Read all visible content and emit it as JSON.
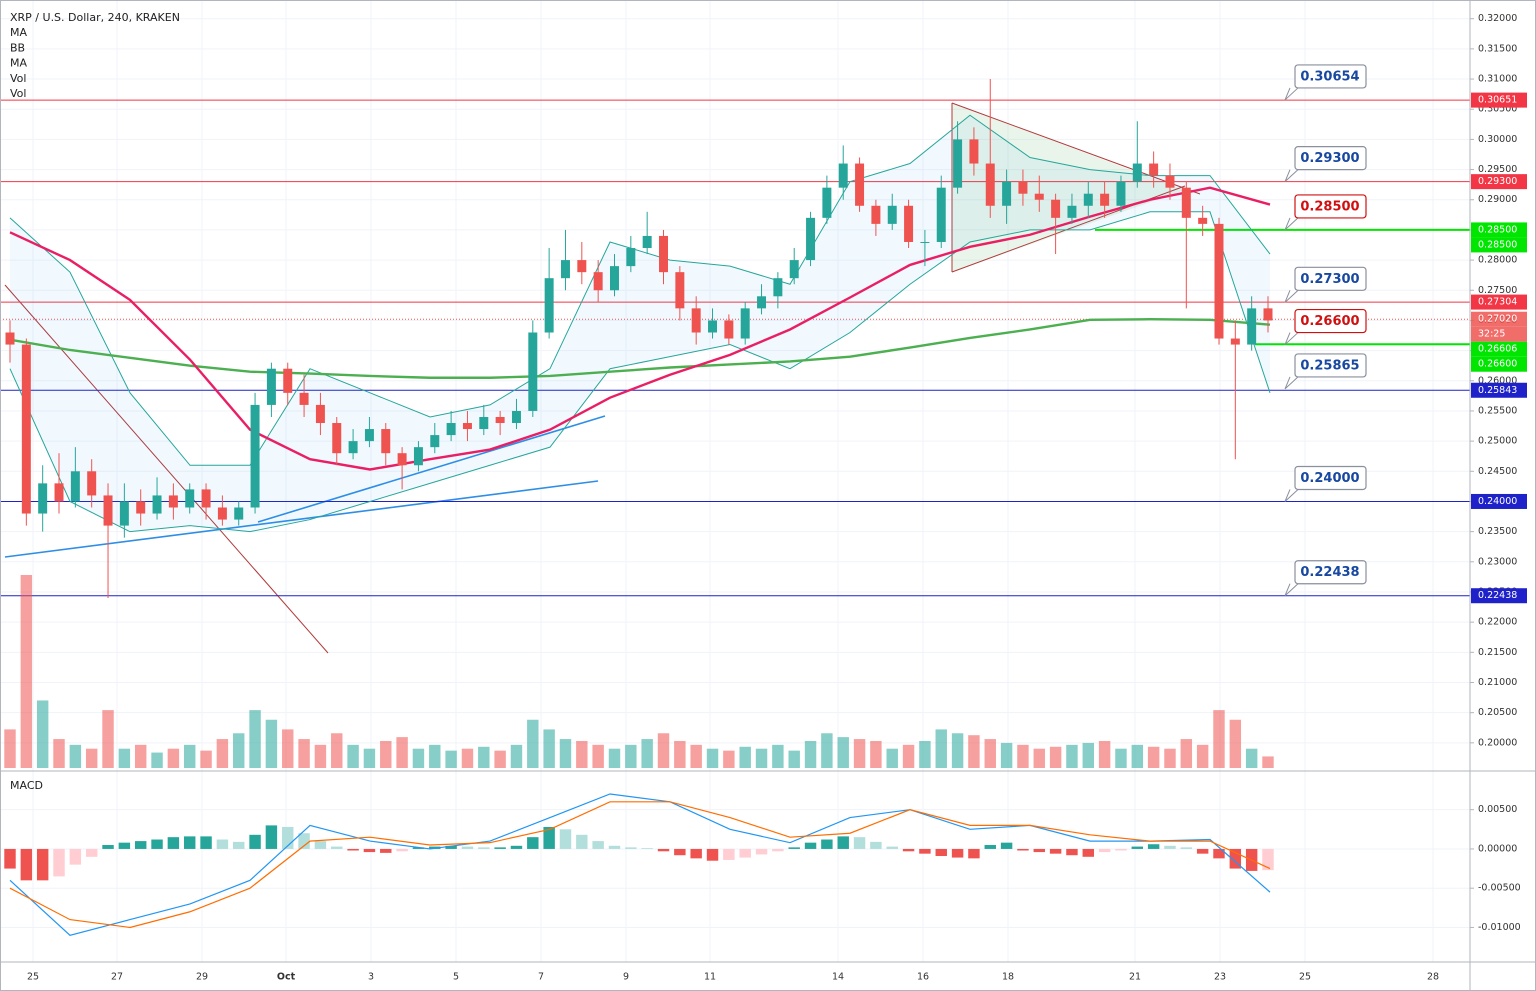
{
  "chart_data": {
    "type": "candlestick",
    "title": "XRP / U.S. Dollar, 240, KRAKEN",
    "indicators": [
      "MA",
      "BB",
      "MA",
      "Vol",
      "Vol"
    ],
    "x_labels": [
      "25",
      "27",
      "29",
      "Oct",
      "3",
      "5",
      "7",
      "9",
      "11",
      "14",
      "16",
      "18",
      "21",
      "23",
      "25",
      "28"
    ],
    "up_color": "#26a69a",
    "down_color": "#ef5350",
    "ylim": [
      0.1955,
      0.3231
    ],
    "yticks": [
      {
        "value": 0.32,
        "label": "0.32000"
      },
      {
        "value": 0.315,
        "label": "0.31500"
      },
      {
        "value": 0.31,
        "label": "0.31000"
      },
      {
        "value": 0.305,
        "label": "0.30500"
      },
      {
        "value": 0.3,
        "label": "0.30000"
      },
      {
        "value": 0.295,
        "label": "0.29500"
      },
      {
        "value": 0.29,
        "label": "0.29000"
      },
      {
        "value": 0.285,
        "label": "0.28500"
      },
      {
        "value": 0.28,
        "label": "0.28000"
      },
      {
        "value": 0.275,
        "label": "0.27500"
      },
      {
        "value": 0.27,
        "label": "0.27000"
      },
      {
        "value": 0.265,
        "label": "0.26500"
      },
      {
        "value": 0.26,
        "label": "0.26000"
      },
      {
        "value": 0.255,
        "label": "0.25500"
      },
      {
        "value": 0.25,
        "label": "0.25000"
      },
      {
        "value": 0.245,
        "label": "0.24500"
      },
      {
        "value": 0.24,
        "label": "0.24000"
      },
      {
        "value": 0.235,
        "label": "0.23500"
      },
      {
        "value": 0.23,
        "label": "0.23000"
      },
      {
        "value": 0.225,
        "label": "0.22500"
      },
      {
        "value": 0.22,
        "label": "0.22000"
      },
      {
        "value": 0.215,
        "label": "0.21500"
      },
      {
        "value": 0.21,
        "label": "0.21000"
      },
      {
        "value": 0.205,
        "label": "0.20500"
      },
      {
        "value": 0.2,
        "label": "0.20000"
      }
    ],
    "candles": [
      [
        0.268,
        0.27,
        0.263,
        0.266
      ],
      [
        0.266,
        0.267,
        0.236,
        0.238
      ],
      [
        0.238,
        0.246,
        0.235,
        0.243
      ],
      [
        0.243,
        0.248,
        0.238,
        0.24
      ],
      [
        0.24,
        0.249,
        0.239,
        0.245
      ],
      [
        0.245,
        0.247,
        0.239,
        0.241
      ],
      [
        0.241,
        0.243,
        0.224,
        0.236
      ],
      [
        0.236,
        0.243,
        0.234,
        0.24
      ],
      [
        0.24,
        0.242,
        0.236,
        0.238
      ],
      [
        0.238,
        0.244,
        0.237,
        0.241
      ],
      [
        0.241,
        0.243,
        0.237,
        0.239
      ],
      [
        0.239,
        0.243,
        0.238,
        0.242
      ],
      [
        0.242,
        0.243,
        0.237,
        0.239
      ],
      [
        0.239,
        0.241,
        0.236,
        0.237
      ],
      [
        0.237,
        0.24,
        0.236,
        0.239
      ],
      [
        0.239,
        0.258,
        0.238,
        0.256
      ],
      [
        0.256,
        0.263,
        0.254,
        0.262
      ],
      [
        0.262,
        0.263,
        0.256,
        0.258
      ],
      [
        0.258,
        0.261,
        0.254,
        0.256
      ],
      [
        0.256,
        0.258,
        0.251,
        0.253
      ],
      [
        0.253,
        0.254,
        0.246,
        0.248
      ],
      [
        0.248,
        0.252,
        0.247,
        0.25
      ],
      [
        0.25,
        0.254,
        0.249,
        0.252
      ],
      [
        0.252,
        0.253,
        0.246,
        0.248
      ],
      [
        0.248,
        0.249,
        0.242,
        0.246
      ],
      [
        0.246,
        0.25,
        0.245,
        0.249
      ],
      [
        0.249,
        0.253,
        0.248,
        0.251
      ],
      [
        0.251,
        0.255,
        0.25,
        0.253
      ],
      [
        0.253,
        0.255,
        0.25,
        0.252
      ],
      [
        0.252,
        0.256,
        0.251,
        0.254
      ],
      [
        0.254,
        0.255,
        0.251,
        0.253
      ],
      [
        0.253,
        0.257,
        0.252,
        0.255
      ],
      [
        0.255,
        0.27,
        0.254,
        0.268
      ],
      [
        0.268,
        0.282,
        0.267,
        0.277
      ],
      [
        0.277,
        0.285,
        0.275,
        0.28
      ],
      [
        0.28,
        0.283,
        0.276,
        0.278
      ],
      [
        0.278,
        0.28,
        0.273,
        0.275
      ],
      [
        0.275,
        0.281,
        0.274,
        0.279
      ],
      [
        0.279,
        0.284,
        0.278,
        0.282
      ],
      [
        0.282,
        0.288,
        0.281,
        0.284
      ],
      [
        0.284,
        0.285,
        0.276,
        0.278
      ],
      [
        0.278,
        0.279,
        0.27,
        0.272
      ],
      [
        0.272,
        0.274,
        0.266,
        0.268
      ],
      [
        0.268,
        0.272,
        0.267,
        0.27
      ],
      [
        0.27,
        0.271,
        0.266,
        0.267
      ],
      [
        0.267,
        0.273,
        0.266,
        0.272
      ],
      [
        0.272,
        0.276,
        0.271,
        0.274
      ],
      [
        0.274,
        0.278,
        0.272,
        0.277
      ],
      [
        0.277,
        0.282,
        0.276,
        0.28
      ],
      [
        0.28,
        0.288,
        0.279,
        0.287
      ],
      [
        0.287,
        0.294,
        0.286,
        0.292
      ],
      [
        0.292,
        0.299,
        0.29,
        0.296
      ],
      [
        0.296,
        0.297,
        0.288,
        0.289
      ],
      [
        0.289,
        0.29,
        0.284,
        0.286
      ],
      [
        0.286,
        0.291,
        0.285,
        0.289
      ],
      [
        0.289,
        0.29,
        0.282,
        0.283
      ],
      [
        0.283,
        0.285,
        0.279,
        0.283
      ],
      [
        0.283,
        0.294,
        0.282,
        0.292
      ],
      [
        0.292,
        0.303,
        0.291,
        0.3
      ],
      [
        0.3,
        0.302,
        0.294,
        0.296
      ],
      [
        0.296,
        0.31,
        0.287,
        0.289
      ],
      [
        0.289,
        0.295,
        0.286,
        0.293
      ],
      [
        0.293,
        0.295,
        0.289,
        0.291
      ],
      [
        0.291,
        0.294,
        0.288,
        0.29
      ],
      [
        0.29,
        0.291,
        0.281,
        0.287
      ],
      [
        0.287,
        0.291,
        0.286,
        0.289
      ],
      [
        0.289,
        0.293,
        0.287,
        0.291
      ],
      [
        0.291,
        0.293,
        0.287,
        0.289
      ],
      [
        0.289,
        0.294,
        0.288,
        0.293
      ],
      [
        0.293,
        0.303,
        0.292,
        0.296
      ],
      [
        0.296,
        0.298,
        0.292,
        0.294
      ],
      [
        0.294,
        0.296,
        0.29,
        0.292
      ],
      [
        0.292,
        0.293,
        0.272,
        0.287
      ],
      [
        0.287,
        0.289,
        0.284,
        0.286
      ],
      [
        0.286,
        0.287,
        0.266,
        0.267
      ],
      [
        0.267,
        0.27,
        0.247,
        0.266
      ],
      [
        0.266,
        0.274,
        0.265,
        0.272
      ],
      [
        0.272,
        0.274,
        0.268,
        0.27
      ]
    ],
    "volume": [
      20,
      100,
      35,
      15,
      12,
      10,
      30,
      10,
      12,
      8,
      10,
      12,
      9,
      15,
      18,
      30,
      25,
      20,
      15,
      12,
      18,
      12,
      10,
      14,
      16,
      10,
      12,
      9,
      10,
      11,
      9,
      12,
      25,
      20,
      15,
      14,
      12,
      10,
      12,
      15,
      18,
      14,
      12,
      10,
      9,
      11,
      10,
      12,
      9,
      14,
      18,
      16,
      15,
      14,
      10,
      12,
      14,
      20,
      18,
      17,
      15,
      13,
      12,
      10,
      11,
      12,
      13,
      14,
      10,
      12,
      11,
      10,
      15,
      12,
      30,
      25,
      10,
      6
    ],
    "bb_upper": {
      "color": "#26a69a",
      "values": [
        0.287,
        0.278,
        0.258,
        0.246,
        0.246,
        0.262,
        0.258,
        0.254,
        0.256,
        0.262,
        0.283,
        0.28,
        0.279,
        0.276,
        0.293,
        0.296,
        0.304,
        0.297,
        0.295,
        0.294,
        0.294,
        0.281
      ]
    },
    "bb_lower": {
      "color": "#26a69a",
      "values": [
        0.262,
        0.24,
        0.235,
        0.236,
        0.235,
        0.237,
        0.24,
        0.243,
        0.246,
        0.249,
        0.262,
        0.264,
        0.266,
        0.262,
        0.268,
        0.276,
        0.283,
        0.285,
        0.285,
        0.288,
        0.288,
        0.258
      ]
    },
    "ma_fast": {
      "color": "#e91e63",
      "values": [
        0.2846,
        0.28,
        0.2734,
        0.2635,
        0.2519,
        0.247,
        0.2453,
        0.247,
        0.2486,
        0.2519,
        0.2572,
        0.261,
        0.2643,
        0.2685,
        0.2738,
        0.2792,
        0.2822,
        0.2842,
        0.2872,
        0.29,
        0.292,
        0.2892
      ]
    },
    "ma_slow": {
      "color": "#4caf50",
      "values": [
        0.2668,
        0.2651,
        0.2638,
        0.2625,
        0.2615,
        0.2612,
        0.2608,
        0.2605,
        0.2605,
        0.2608,
        0.2615,
        0.2622,
        0.2627,
        0.2632,
        0.264,
        0.2655,
        0.2671,
        0.2685,
        0.2701,
        0.2702,
        0.2701,
        0.2693
      ]
    },
    "levels": [
      {
        "value": 0.30651,
        "label": "0.30651",
        "color": "#f23645"
      },
      {
        "value": 0.293,
        "label": "0.29300",
        "color": "#f23645"
      },
      {
        "value": 0.285,
        "label": "0.28500",
        "color": "#00e600"
      },
      {
        "value": 0.27304,
        "label": "0.27304",
        "color": "#f23645"
      },
      {
        "value": 0.2702,
        "label": "0.27020",
        "color": "#ef5350",
        "dotted": true,
        "countdown": "32:25"
      },
      {
        "value": 0.26606,
        "label": "0.26606",
        "color": "#00e600"
      },
      {
        "value": 0.25843,
        "label": "0.25843",
        "color": "#1e22c8"
      },
      {
        "value": 0.24,
        "label": "0.24000",
        "color": "#1e22c8"
      },
      {
        "value": 0.22438,
        "label": "0.22438",
        "color": "#1e22c8"
      }
    ],
    "extra_tags": [
      {
        "value": 0.285,
        "label": "0.28500",
        "color": "#00e600"
      },
      {
        "value": 0.266,
        "label": "0.26600",
        "color": "#00e600"
      }
    ],
    "callouts": [
      {
        "value": 0.30654,
        "label": "0.30654",
        "color": "#1848a0"
      },
      {
        "value": 0.293,
        "label": "0.29300",
        "color": "#1848a0"
      },
      {
        "value": 0.285,
        "label": "0.28500",
        "color": "#d01010"
      },
      {
        "value": 0.273,
        "label": "0.27300",
        "color": "#1848a0"
      },
      {
        "value": 0.266,
        "label": "0.26600",
        "color": "#d01010"
      },
      {
        "value": 0.25865,
        "label": "0.25865",
        "color": "#1848a0"
      },
      {
        "value": 0.24,
        "label": "0.24000",
        "color": "#1848a0"
      },
      {
        "value": 0.22438,
        "label": "0.22438",
        "color": "#1848a0"
      }
    ],
    "macd": {
      "title": "MACD",
      "ylim": [
        -0.0144,
        0.0098
      ],
      "yticks": [
        {
          "value": 0.005,
          "label": "0.00500"
        },
        {
          "value": 0,
          "label": "0.00000"
        },
        {
          "value": -0.005,
          "label": "-0.00500"
        },
        {
          "value": -0.01,
          "label": "-0.01000"
        }
      ],
      "histogram": [
        -0.0025,
        -0.004,
        -0.004,
        -0.0035,
        -0.002,
        -0.001,
        0.0005,
        0.0008,
        0.001,
        0.0012,
        0.0015,
        0.0016,
        0.0016,
        0.0012,
        0.0009,
        0.0018,
        0.003,
        0.0028,
        0.002,
        0.001,
        0.0003,
        -0.0002,
        -0.0004,
        -0.0005,
        -0.0003,
        0.0002,
        0.0003,
        0.0004,
        0.0003,
        0.0002,
        0.0002,
        0.0004,
        0.0015,
        0.0028,
        0.0025,
        0.0018,
        0.001,
        0.0004,
        0.0002,
        0.0001,
        -0.0003,
        -0.0008,
        -0.0012,
        -0.0015,
        -0.0014,
        -0.0011,
        -0.0007,
        -0.0003,
        0.0002,
        0.0008,
        0.0012,
        0.0016,
        0.0015,
        0.0009,
        0.0003,
        -0.0003,
        -0.0006,
        -0.0009,
        -0.0011,
        -0.0012,
        0.0005,
        0.0008,
        -0.0002,
        -0.0004,
        -0.0006,
        -0.0008,
        -0.001,
        -0.0004,
        -0.0002,
        0.0003,
        0.0006,
        0.0004,
        0.0002,
        -0.0006,
        -0.0012,
        -0.0025,
        -0.0028,
        -0.0027
      ],
      "macd": {
        "color": "#2196f3",
        "values": [
          -0.004,
          -0.011,
          -0.009,
          -0.007,
          -0.004,
          0.003,
          0.001,
          0.0,
          0.001,
          0.004,
          0.007,
          0.006,
          0.0025,
          0.0008,
          0.004,
          0.005,
          0.0025,
          0.003,
          0.001,
          0.001,
          0.0012,
          -0.0055
        ]
      },
      "signal": {
        "color": "#ff6d00",
        "values": [
          -0.005,
          -0.009,
          -0.01,
          -0.008,
          -0.005,
          0.001,
          0.0015,
          0.0005,
          0.0008,
          0.0025,
          0.006,
          0.006,
          0.004,
          0.0015,
          0.002,
          0.005,
          0.003,
          0.003,
          0.0018,
          0.001,
          0.001,
          -0.0025
        ]
      }
    }
  }
}
